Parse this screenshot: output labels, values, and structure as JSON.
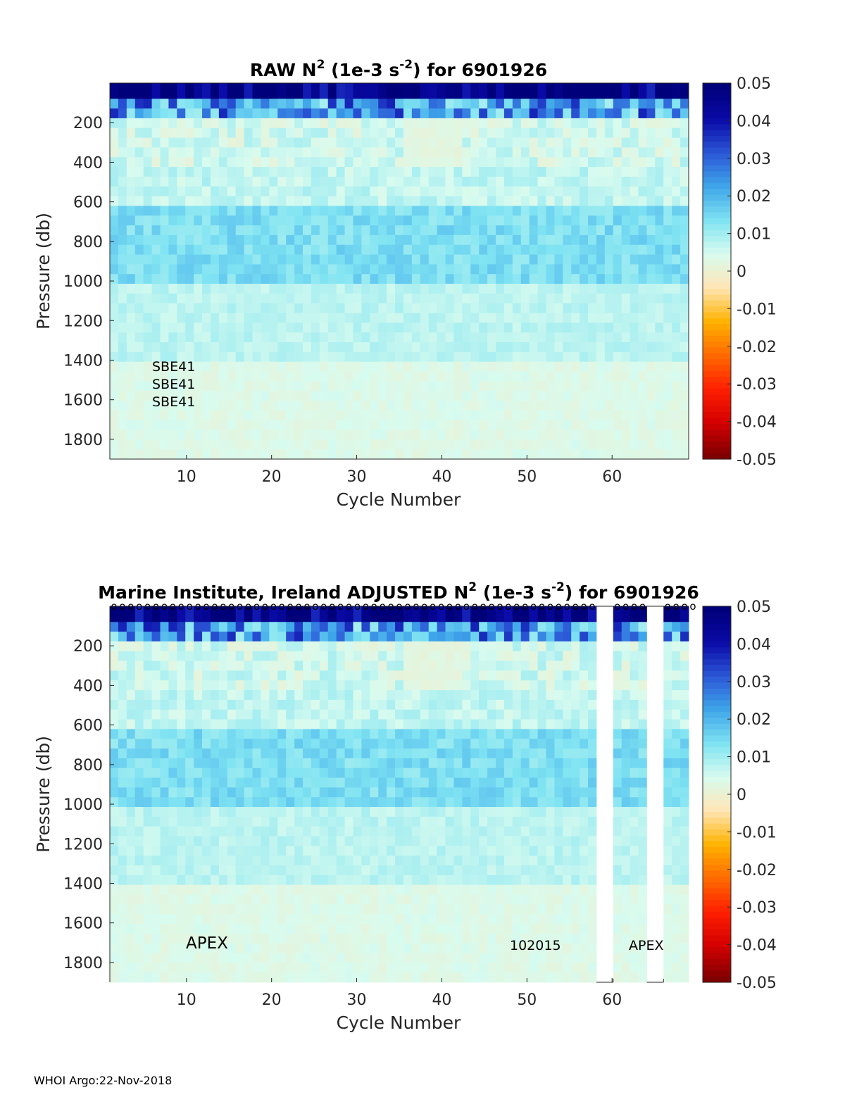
{
  "footer": "WHOI Argo:22-Nov-2018",
  "colorbar": {
    "ticks": [
      "0.05",
      "0.04",
      "0.03",
      "0.02",
      "0.01",
      "0",
      "-0.01",
      "-0.02",
      "-0.03",
      "-0.04",
      "-0.05"
    ],
    "colors": [
      "#7f0000",
      "#d40000",
      "#ff1f00",
      "#ff6a00",
      "#ffb200",
      "#ffe6b5",
      "#d8fbef",
      "#7fe3f2",
      "#3fa6ea",
      "#2b57d6",
      "#0a0aa8",
      "#00007a"
    ]
  },
  "chart_data": [
    {
      "type": "heatmap",
      "title_main": "RAW N",
      "title_sup1": "2",
      "title_mid": " (1e-3 s",
      "title_sup2": "-2",
      "title_end": ") for 6901926",
      "xlabel": "Cycle Number",
      "ylabel": "Pressure (db)",
      "xlim": [
        1,
        69
      ],
      "ylim": [
        1900,
        0
      ],
      "xticks": [
        10,
        20,
        30,
        40,
        50,
        60
      ],
      "yticks": [
        200,
        400,
        600,
        800,
        1000,
        1200,
        1400,
        1600,
        1800
      ],
      "clim": [
        -0.05,
        0.05
      ],
      "annotations": [
        "SBE41",
        "SBE41",
        "SBE41"
      ],
      "missing_cycles": [],
      "qc_markers": false
    },
    {
      "type": "heatmap",
      "title_main": "Marine Institute, Ireland  ADJUSTED N",
      "title_sup1": "2",
      "title_mid": " (1e-3 s",
      "title_sup2": "-2",
      "title_end": ") for 6901926",
      "xlabel": "Cycle Number",
      "ylabel": "Pressure (db)",
      "xlim": [
        1,
        69
      ],
      "ylim": [
        1900,
        0
      ],
      "xticks": [
        10,
        20,
        30,
        40,
        50,
        60
      ],
      "yticks": [
        200,
        400,
        600,
        800,
        1000,
        1200,
        1400,
        1600,
        1800
      ],
      "clim": [
        -0.05,
        0.05
      ],
      "annotations": [
        "APEX",
        "102015",
        "APEX"
      ],
      "missing_cycles": [
        59,
        60,
        65,
        66
      ],
      "qc_markers": true,
      "qc_marker_symbol": "o"
    }
  ]
}
